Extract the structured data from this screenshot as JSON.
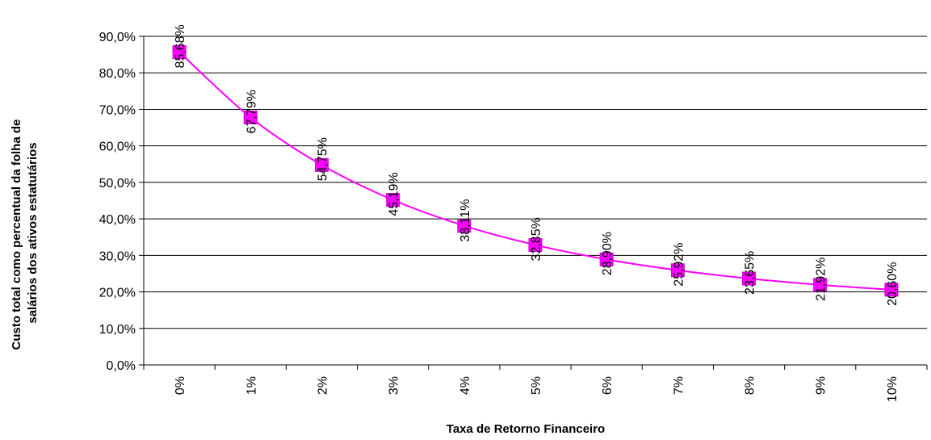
{
  "chart_data": {
    "type": "line",
    "title": "",
    "xlabel": "Taxa de Retorno Financeiro",
    "ylabel_lines": [
      "Custo total como percentual da folha de",
      "salários dos ativos estatutários"
    ],
    "categories": [
      "0%",
      "1%",
      "2%",
      "3%",
      "4%",
      "5%",
      "6%",
      "7%",
      "8%",
      "9%",
      "10%"
    ],
    "series": [
      {
        "values": [
          85.68,
          67.79,
          54.75,
          45.19,
          38.11,
          32.85,
          28.9,
          25.92,
          23.65,
          21.92,
          20.6
        ],
        "data_labels": [
          "85,68%",
          "67,79%",
          "54,75%",
          "45,19%",
          "38,11%",
          "32,85%",
          "28,90%",
          "25,92%",
          "23,65%",
          "21,92%",
          "20,60%"
        ],
        "color": "#ff00ff",
        "marker": "square"
      }
    ],
    "ylim": [
      0,
      90
    ],
    "yticks": [
      0,
      10,
      20,
      30,
      40,
      50,
      60,
      70,
      80,
      90
    ],
    "ytick_labels": [
      "0,0%",
      "10,0%",
      "20,0%",
      "30,0%",
      "40,0%",
      "50,0%",
      "60,0%",
      "70,0%",
      "80,0%",
      "90,0%"
    ],
    "grid": true,
    "legend": "none"
  }
}
